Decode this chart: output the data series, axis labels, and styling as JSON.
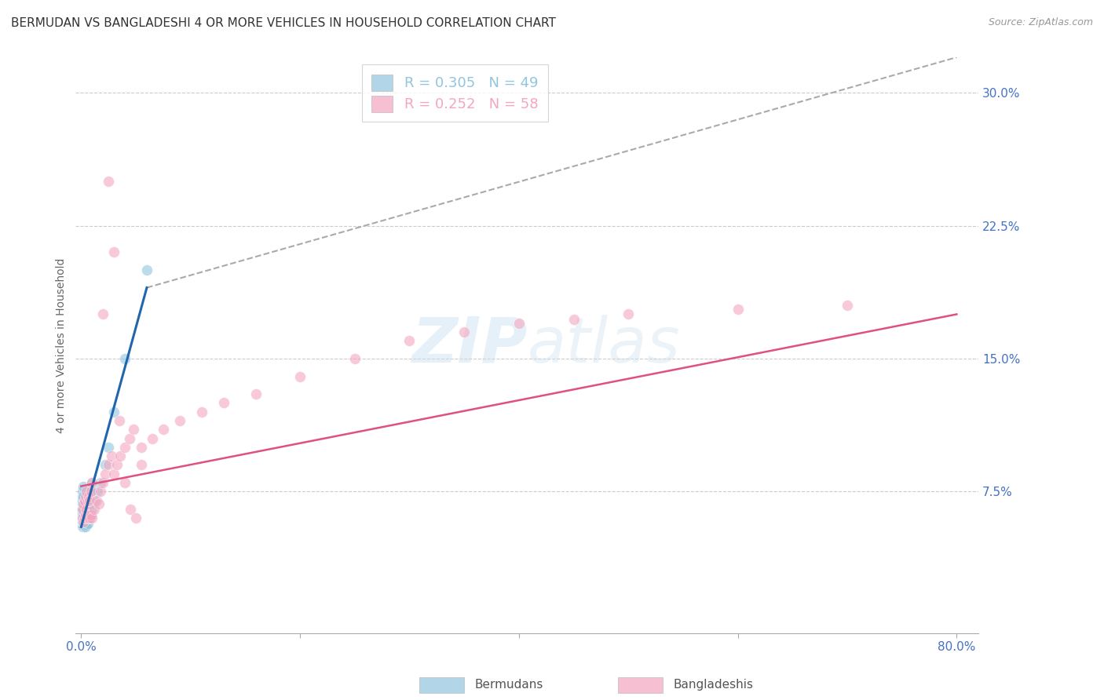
{
  "title": "BERMUDAN VS BANGLADESHI 4 OR MORE VEHICLES IN HOUSEHOLD CORRELATION CHART",
  "source": "Source: ZipAtlas.com",
  "ylabel": "4 or more Vehicles in Household",
  "xlabel_ticks": [
    "0.0%",
    "",
    "",
    "",
    "80.0%"
  ],
  "xlabel_vals": [
    0.0,
    0.2,
    0.4,
    0.6,
    0.8
  ],
  "ylabel_ticks": [
    "7.5%",
    "15.0%",
    "22.5%",
    "30.0%"
  ],
  "ylabel_vals": [
    0.075,
    0.15,
    0.225,
    0.3
  ],
  "xlim": [
    -0.005,
    0.82
  ],
  "ylim": [
    -0.005,
    0.32
  ],
  "watermark_zip": "ZIP",
  "watermark_atlas": "atlas",
  "legend_label_b": "R = 0.305   N = 49",
  "legend_label_p": "R = 0.252   N = 58",
  "legend_title_bermudans": "Bermudans",
  "legend_title_bangladeshis": "Bangladeshis",
  "bermudans_color": "#92c5de",
  "bangladeshis_color": "#f4a6c0",
  "blue_line_color": "#2166ac",
  "pink_line_color": "#e05080",
  "gray_dash_color": "#aaaaaa",
  "bermudans_x": [
    0.001,
    0.001,
    0.001,
    0.001,
    0.001,
    0.001,
    0.001,
    0.001,
    0.001,
    0.001,
    0.002,
    0.002,
    0.002,
    0.002,
    0.002,
    0.002,
    0.002,
    0.002,
    0.003,
    0.003,
    0.003,
    0.003,
    0.003,
    0.004,
    0.004,
    0.004,
    0.004,
    0.005,
    0.005,
    0.005,
    0.006,
    0.006,
    0.006,
    0.007,
    0.007,
    0.008,
    0.008,
    0.009,
    0.009,
    0.01,
    0.01,
    0.012,
    0.015,
    0.018,
    0.022,
    0.025,
    0.03,
    0.04,
    0.06
  ],
  "bermudans_y": [
    0.055,
    0.058,
    0.06,
    0.062,
    0.063,
    0.065,
    0.068,
    0.07,
    0.072,
    0.075,
    0.055,
    0.058,
    0.06,
    0.062,
    0.065,
    0.068,
    0.072,
    0.078,
    0.055,
    0.058,
    0.06,
    0.063,
    0.068,
    0.055,
    0.058,
    0.062,
    0.07,
    0.056,
    0.06,
    0.065,
    0.057,
    0.061,
    0.066,
    0.06,
    0.068,
    0.06,
    0.07,
    0.062,
    0.075,
    0.065,
    0.08,
    0.07,
    0.075,
    0.08,
    0.09,
    0.1,
    0.12,
    0.15,
    0.2
  ],
  "bangladeshis_x": [
    0.001,
    0.001,
    0.002,
    0.002,
    0.003,
    0.003,
    0.004,
    0.004,
    0.005,
    0.005,
    0.006,
    0.006,
    0.007,
    0.007,
    0.008,
    0.008,
    0.009,
    0.009,
    0.01,
    0.01,
    0.012,
    0.014,
    0.016,
    0.018,
    0.02,
    0.022,
    0.025,
    0.028,
    0.03,
    0.033,
    0.036,
    0.04,
    0.044,
    0.048,
    0.055,
    0.065,
    0.075,
    0.09,
    0.11,
    0.13,
    0.16,
    0.2,
    0.25,
    0.3,
    0.35,
    0.4,
    0.45,
    0.5,
    0.6,
    0.7,
    0.02,
    0.025,
    0.03,
    0.035,
    0.04,
    0.045,
    0.05,
    0.055
  ],
  "bangladeshis_y": [
    0.06,
    0.065,
    0.058,
    0.068,
    0.06,
    0.07,
    0.062,
    0.072,
    0.065,
    0.075,
    0.06,
    0.07,
    0.062,
    0.072,
    0.06,
    0.07,
    0.062,
    0.075,
    0.06,
    0.08,
    0.065,
    0.07,
    0.068,
    0.075,
    0.08,
    0.085,
    0.09,
    0.095,
    0.085,
    0.09,
    0.095,
    0.1,
    0.105,
    0.11,
    0.1,
    0.105,
    0.11,
    0.115,
    0.12,
    0.125,
    0.13,
    0.14,
    0.15,
    0.16,
    0.165,
    0.17,
    0.172,
    0.175,
    0.178,
    0.18,
    0.175,
    0.25,
    0.21,
    0.115,
    0.08,
    0.065,
    0.06,
    0.09
  ],
  "grid_color": "#cccccc",
  "background_color": "#ffffff",
  "title_fontsize": 11,
  "axis_label_fontsize": 10,
  "tick_label_color": "#4472c4",
  "tick_label_fontsize": 11
}
